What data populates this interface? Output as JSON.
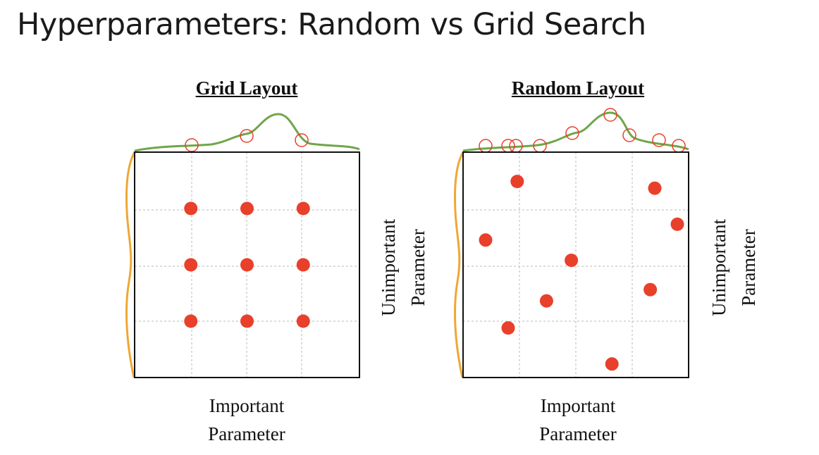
{
  "title": "Hyperparameters: Random vs Grid Search",
  "colors": {
    "point": "#e8402a",
    "important_curve": "#6fa64a",
    "unimportant_curve": "#f0a733",
    "grid_line": "#b8b8b8",
    "frame": "#111111"
  },
  "panels": [
    {
      "id": "grid",
      "title": "Grid Layout",
      "x_label_line1": "Important",
      "x_label_line2": "Parameter",
      "y_label_line1": "Unimportant",
      "y_label_line2": "Parameter",
      "points": [
        {
          "x": 0.25,
          "y": 0.75
        },
        {
          "x": 0.5,
          "y": 0.75
        },
        {
          "x": 0.75,
          "y": 0.75
        },
        {
          "x": 0.25,
          "y": 0.5
        },
        {
          "x": 0.5,
          "y": 0.5
        },
        {
          "x": 0.75,
          "y": 0.5
        },
        {
          "x": 0.25,
          "y": 0.25
        },
        {
          "x": 0.5,
          "y": 0.25
        },
        {
          "x": 0.75,
          "y": 0.25
        }
      ]
    },
    {
      "id": "random",
      "title": "Random Layout",
      "x_label_line1": "Important",
      "x_label_line2": "Parameter",
      "y_label_line1": "Unimportant",
      "y_label_line2": "Parameter",
      "points": [
        {
          "x": 0.24,
          "y": 0.87
        },
        {
          "x": 0.85,
          "y": 0.84
        },
        {
          "x": 0.95,
          "y": 0.68
        },
        {
          "x": 0.1,
          "y": 0.61
        },
        {
          "x": 0.48,
          "y": 0.52
        },
        {
          "x": 0.83,
          "y": 0.39
        },
        {
          "x": 0.37,
          "y": 0.34
        },
        {
          "x": 0.2,
          "y": 0.22
        },
        {
          "x": 0.66,
          "y": 0.06
        }
      ]
    }
  ]
}
